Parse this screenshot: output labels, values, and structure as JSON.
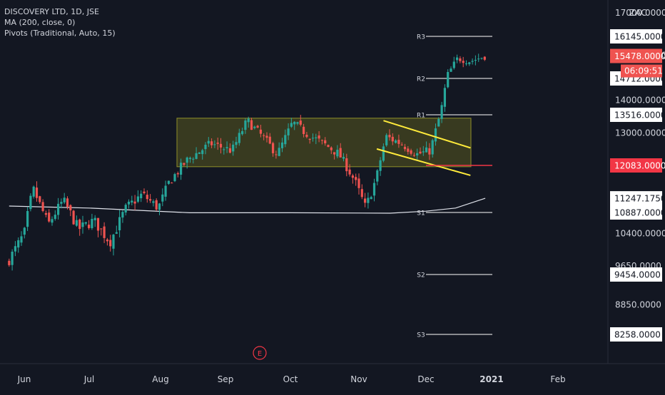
{
  "legend": {
    "title": "DISCOVERY LTD, 1D, JSE",
    "ma": "MA (200, close, 0)",
    "pivots": "Pivots (Traditional, Auto, 15)"
  },
  "currency": "ZAC",
  "price_labels": {
    "last": "15478.0000",
    "countdown": "06:09:51",
    "r3": "16145.0000",
    "r2": "14712.0000",
    "r1": "13516.0000",
    "s1": "10887.0000",
    "s2": "9454.0000",
    "s3": "8258.0000",
    "ma": "11247.1750",
    "level": "12083.0000"
  },
  "pivot_names": [
    "R3",
    "R2",
    "R1",
    "S1",
    "S2",
    "S3"
  ],
  "event_marker": "E",
  "colors": {
    "background": "#131722",
    "up": "#26a69a",
    "down": "#ef5350",
    "ma_line": "#e0e3eb",
    "pivot_line": "#ffffff",
    "trend_line": "#ffeb3b",
    "box_fill": "#6b6b1e",
    "level_line": "#f23645",
    "axis_text": "#d1d4dc"
  },
  "chart_data": {
    "type": "candlestick",
    "title": "DISCOVERY LTD, 1D, JSE",
    "x_tick_labels": [
      "Jun",
      "Jul",
      "Aug",
      "Sep",
      "Oct",
      "Nov",
      "Dec",
      "2021",
      "Feb"
    ],
    "y_tick_labels": [
      "17000.0000",
      "15500.0000",
      "14000.0000",
      "13000.0000",
      "10400.0000",
      "9650.0000",
      "8850.0000"
    ],
    "ylim": [
      7800,
      17200
    ],
    "pivot_levels": {
      "R3": 16145,
      "R2": 14712,
      "R1": 13516,
      "S1": 10887,
      "S2": 9454,
      "S3": 8258
    },
    "horizontal_level": 12083,
    "last_price": 15478,
    "moving_average_last": 11247.175,
    "consolidation_box": {
      "from": "Aug",
      "to": "Dec",
      "low": 12050,
      "high": 13420
    },
    "close_path": [
      {
        "x": "2020-05-25",
        "close": 9800
      },
      {
        "x": "2020-06-01",
        "close": 10400
      },
      {
        "x": "2020-06-05",
        "close": 11500
      },
      {
        "x": "2020-06-12",
        "close": 10600
      },
      {
        "x": "2020-06-19",
        "close": 11200
      },
      {
        "x": "2020-06-26",
        "close": 10500
      },
      {
        "x": "2020-07-03",
        "close": 10700
      },
      {
        "x": "2020-07-10",
        "close": 10200
      },
      {
        "x": "2020-07-17",
        "close": 11000
      },
      {
        "x": "2020-07-24",
        "close": 11350
      },
      {
        "x": "2020-07-31",
        "close": 11000
      },
      {
        "x": "2020-08-05",
        "close": 11650
      },
      {
        "x": "2020-08-14",
        "close": 12250
      },
      {
        "x": "2020-08-25",
        "close": 12700
      },
      {
        "x": "2020-09-04",
        "close": 12500
      },
      {
        "x": "2020-09-11",
        "close": 13350
      },
      {
        "x": "2020-09-18",
        "close": 12900
      },
      {
        "x": "2020-09-25",
        "close": 12400
      },
      {
        "x": "2020-10-02",
        "close": 13300
      },
      {
        "x": "2020-10-09",
        "close": 12950
      },
      {
        "x": "2020-10-16",
        "close": 12700
      },
      {
        "x": "2020-10-23",
        "close": 12400
      },
      {
        "x": "2020-10-30",
        "close": 11700
      },
      {
        "x": "2020-11-04",
        "close": 11000
      },
      {
        "x": "2020-11-09",
        "close": 11800
      },
      {
        "x": "2020-11-13",
        "close": 12900
      },
      {
        "x": "2020-11-20",
        "close": 12700
      },
      {
        "x": "2020-11-27",
        "close": 12400
      },
      {
        "x": "2020-12-03",
        "close": 12500
      },
      {
        "x": "2020-12-08",
        "close": 13600
      },
      {
        "x": "2020-12-11",
        "close": 14800
      },
      {
        "x": "2020-12-16",
        "close": 15400
      },
      {
        "x": "2020-12-22",
        "close": 15300
      },
      {
        "x": "2020-12-29",
        "close": 15478
      }
    ],
    "moving_average": [
      {
        "x": "2020-05-25",
        "y": 11050
      },
      {
        "x": "2020-07-01",
        "y": 11000
      },
      {
        "x": "2020-08-15",
        "y": 10880
      },
      {
        "x": "2020-10-01",
        "y": 10880
      },
      {
        "x": "2020-11-15",
        "y": 10870
      },
      {
        "x": "2020-12-01",
        "y": 10920
      },
      {
        "x": "2020-12-15",
        "y": 11000
      },
      {
        "x": "2020-12-29",
        "y": 11247
      }
    ],
    "trend_lines": [
      {
        "from": {
          "x": "2020-11-12",
          "y": 13350
        },
        "to": {
          "x": "2020-12-22",
          "y": 12580
        }
      },
      {
        "from": {
          "x": "2020-11-09",
          "y": 12550
        },
        "to": {
          "x": "2020-12-22",
          "y": 11830
        }
      }
    ]
  }
}
